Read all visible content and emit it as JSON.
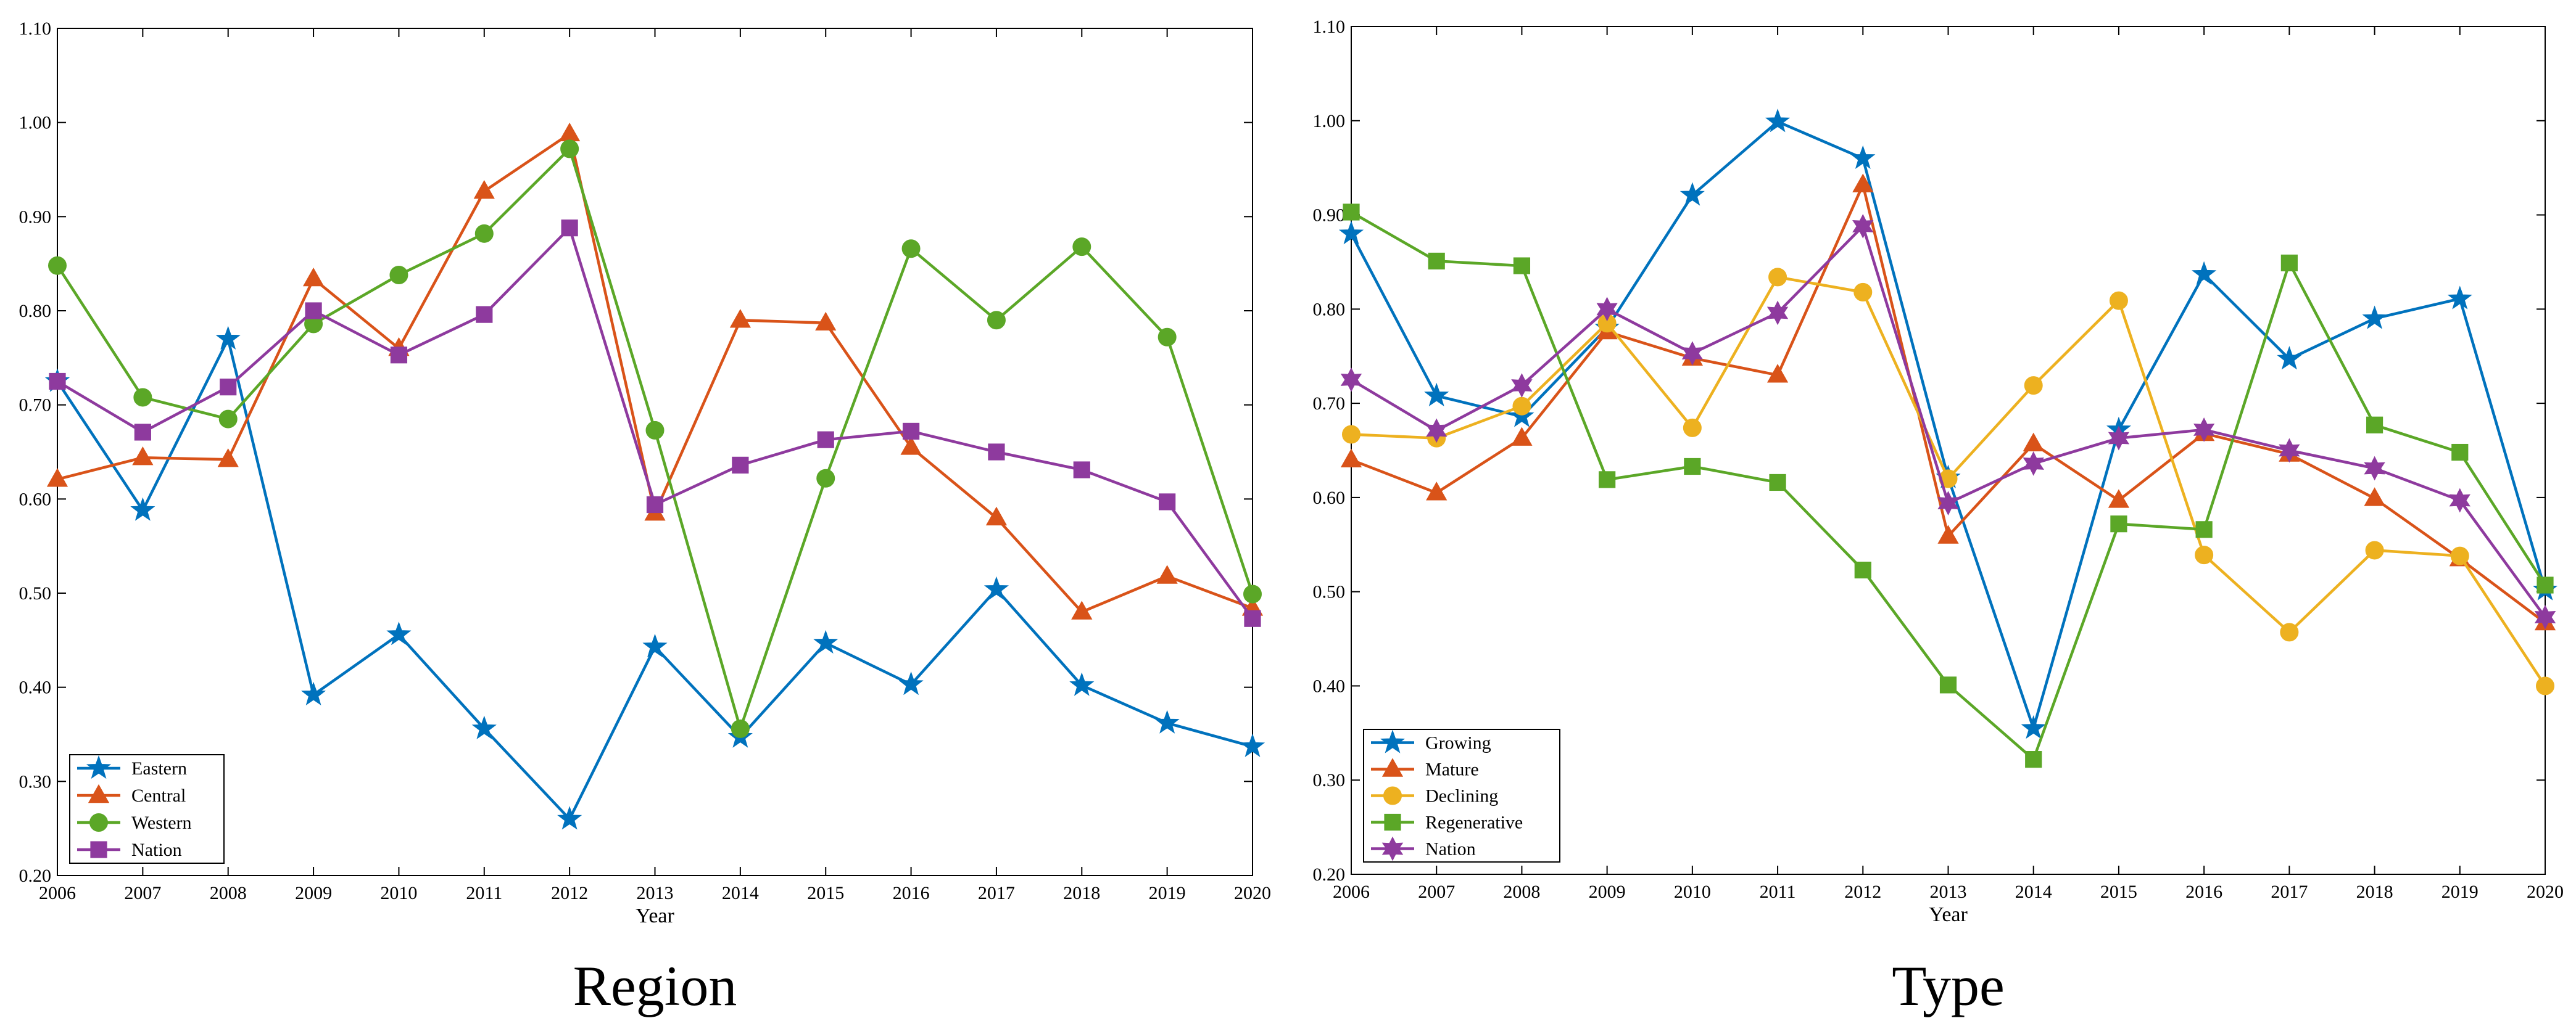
{
  "chart_data": [
    {
      "type": "line",
      "title": "",
      "caption": "Region",
      "xlabel": "Year",
      "ylabel": "",
      "x": [
        "2006",
        "2007",
        "2008",
        "2009",
        "2010",
        "2011",
        "2012",
        "2013",
        "2014",
        "2015",
        "2016",
        "2017",
        "2018",
        "2019",
        "2020"
      ],
      "ylim": [
        0.2,
        1.1
      ],
      "yticks": [
        "0.20",
        "0.30",
        "0.40",
        "0.50",
        "0.60",
        "0.70",
        "0.80",
        "0.90",
        "1.00",
        "1.10"
      ],
      "grid": false,
      "legend_position": "bottom-left",
      "series": [
        {
          "name": "Eastern",
          "color": "#0072BD",
          "marker": "star",
          "values": [
            0.725,
            0.588,
            0.77,
            0.392,
            0.456,
            0.356,
            0.26,
            0.443,
            0.347,
            0.447,
            0.403,
            0.504,
            0.402,
            0.362,
            0.337
          ]
        },
        {
          "name": "Central",
          "color": "#D95319",
          "marker": "triangle",
          "values": [
            0.621,
            0.644,
            0.642,
            0.834,
            0.76,
            0.927,
            0.988,
            0.585,
            0.79,
            0.787,
            0.655,
            0.58,
            0.48,
            0.518,
            0.484
          ]
        },
        {
          "name": "Western",
          "color": "#5BA727",
          "marker": "circle",
          "values": [
            0.848,
            0.708,
            0.685,
            0.786,
            0.838,
            0.882,
            0.972,
            0.673,
            0.356,
            0.622,
            0.866,
            0.79,
            0.868,
            0.772,
            0.499
          ]
        },
        {
          "name": "Nation",
          "color": "#8E3A9E",
          "marker": "square",
          "values": [
            0.725,
            0.671,
            0.719,
            0.8,
            0.753,
            0.796,
            0.888,
            0.594,
            0.636,
            0.663,
            0.672,
            0.65,
            0.631,
            0.597,
            0.473
          ]
        }
      ]
    },
    {
      "type": "line",
      "title": "",
      "caption": "Type",
      "xlabel": "Year",
      "ylabel": "",
      "x": [
        "2006",
        "2007",
        "2008",
        "2009",
        "2010",
        "2011",
        "2012",
        "2013",
        "2014",
        "2015",
        "2016",
        "2017",
        "2018",
        "2019",
        "2020"
      ],
      "ylim": [
        0.2,
        1.1
      ],
      "yticks": [
        "0.20",
        "0.30",
        "0.40",
        "0.50",
        "0.60",
        "0.70",
        "0.80",
        "0.90",
        "1.00",
        "1.10"
      ],
      "grid": false,
      "legend_position": "bottom-left",
      "series": [
        {
          "name": "Growing",
          "color": "#0072BD",
          "marker": "star",
          "values": [
            0.88,
            0.708,
            0.686,
            0.78,
            0.921,
            0.999,
            0.96,
            0.621,
            0.355,
            0.672,
            0.837,
            0.747,
            0.79,
            0.811,
            0.502
          ]
        },
        {
          "name": "Mature",
          "color": "#D95319",
          "marker": "triangle",
          "values": [
            0.64,
            0.605,
            0.663,
            0.776,
            0.748,
            0.73,
            0.932,
            0.559,
            0.657,
            0.597,
            0.668,
            0.646,
            0.599,
            0.535,
            0.467
          ]
        },
        {
          "name": "Declining",
          "color": "#EDB120",
          "marker": "circle",
          "values": [
            0.667,
            0.663,
            0.697,
            0.785,
            0.674,
            0.834,
            0.818,
            0.62,
            0.719,
            0.809,
            0.539,
            0.457,
            0.544,
            0.538,
            0.4
          ]
        },
        {
          "name": "Regenerative",
          "color": "#5BA727",
          "marker": "square",
          "values": [
            0.903,
            0.851,
            0.846,
            0.619,
            0.633,
            0.616,
            0.523,
            0.401,
            0.322,
            0.572,
            0.566,
            0.849,
            0.677,
            0.648,
            0.507
          ]
        },
        {
          "name": "Nation",
          "color": "#8E3A9E",
          "marker": "hexagram",
          "values": [
            0.725,
            0.671,
            0.719,
            0.8,
            0.753,
            0.796,
            0.888,
            0.594,
            0.636,
            0.663,
            0.672,
            0.65,
            0.631,
            0.597,
            0.473
          ]
        }
      ]
    }
  ]
}
